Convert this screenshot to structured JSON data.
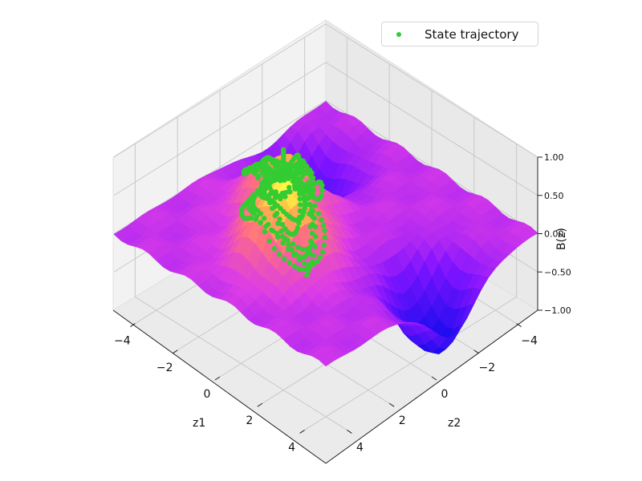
{
  "chart_data": {
    "type": "surface3d",
    "title": "",
    "xlabel": "z1",
    "ylabel": "z2",
    "zlabel": "B(z)",
    "xlim": [
      -5,
      5
    ],
    "ylim": [
      -5,
      5
    ],
    "zlim": [
      -1,
      1
    ],
    "x_ticks": [
      "−4",
      "−2",
      "0",
      "2",
      "4"
    ],
    "y_ticks": [
      "−4",
      "−2",
      "0",
      "2",
      "4"
    ],
    "z_ticks": [
      "−1.00",
      "−0.50",
      "0.00",
      "0.50",
      "1.00"
    ],
    "grid": true,
    "colormap": "gnuplot2-like (blue → purple → magenta → orange → yellow)",
    "surface_peaks": [
      {
        "z1": -2,
        "z2": 0,
        "value": 0.75
      },
      {
        "z1": 0,
        "z2": 2,
        "value": 1.0
      }
    ],
    "surface_troughs": [
      {
        "z1": -3,
        "z2": -2,
        "value": -0.9
      },
      {
        "z1": 4,
        "z2": -1,
        "value": -1.0
      }
    ],
    "series": [
      {
        "name": "State trajectory",
        "marker": "dot",
        "color": "#33cc33"
      }
    ]
  },
  "legend": {
    "label": "State trajectory",
    "color": "#33cc33",
    "position": "top-right"
  }
}
